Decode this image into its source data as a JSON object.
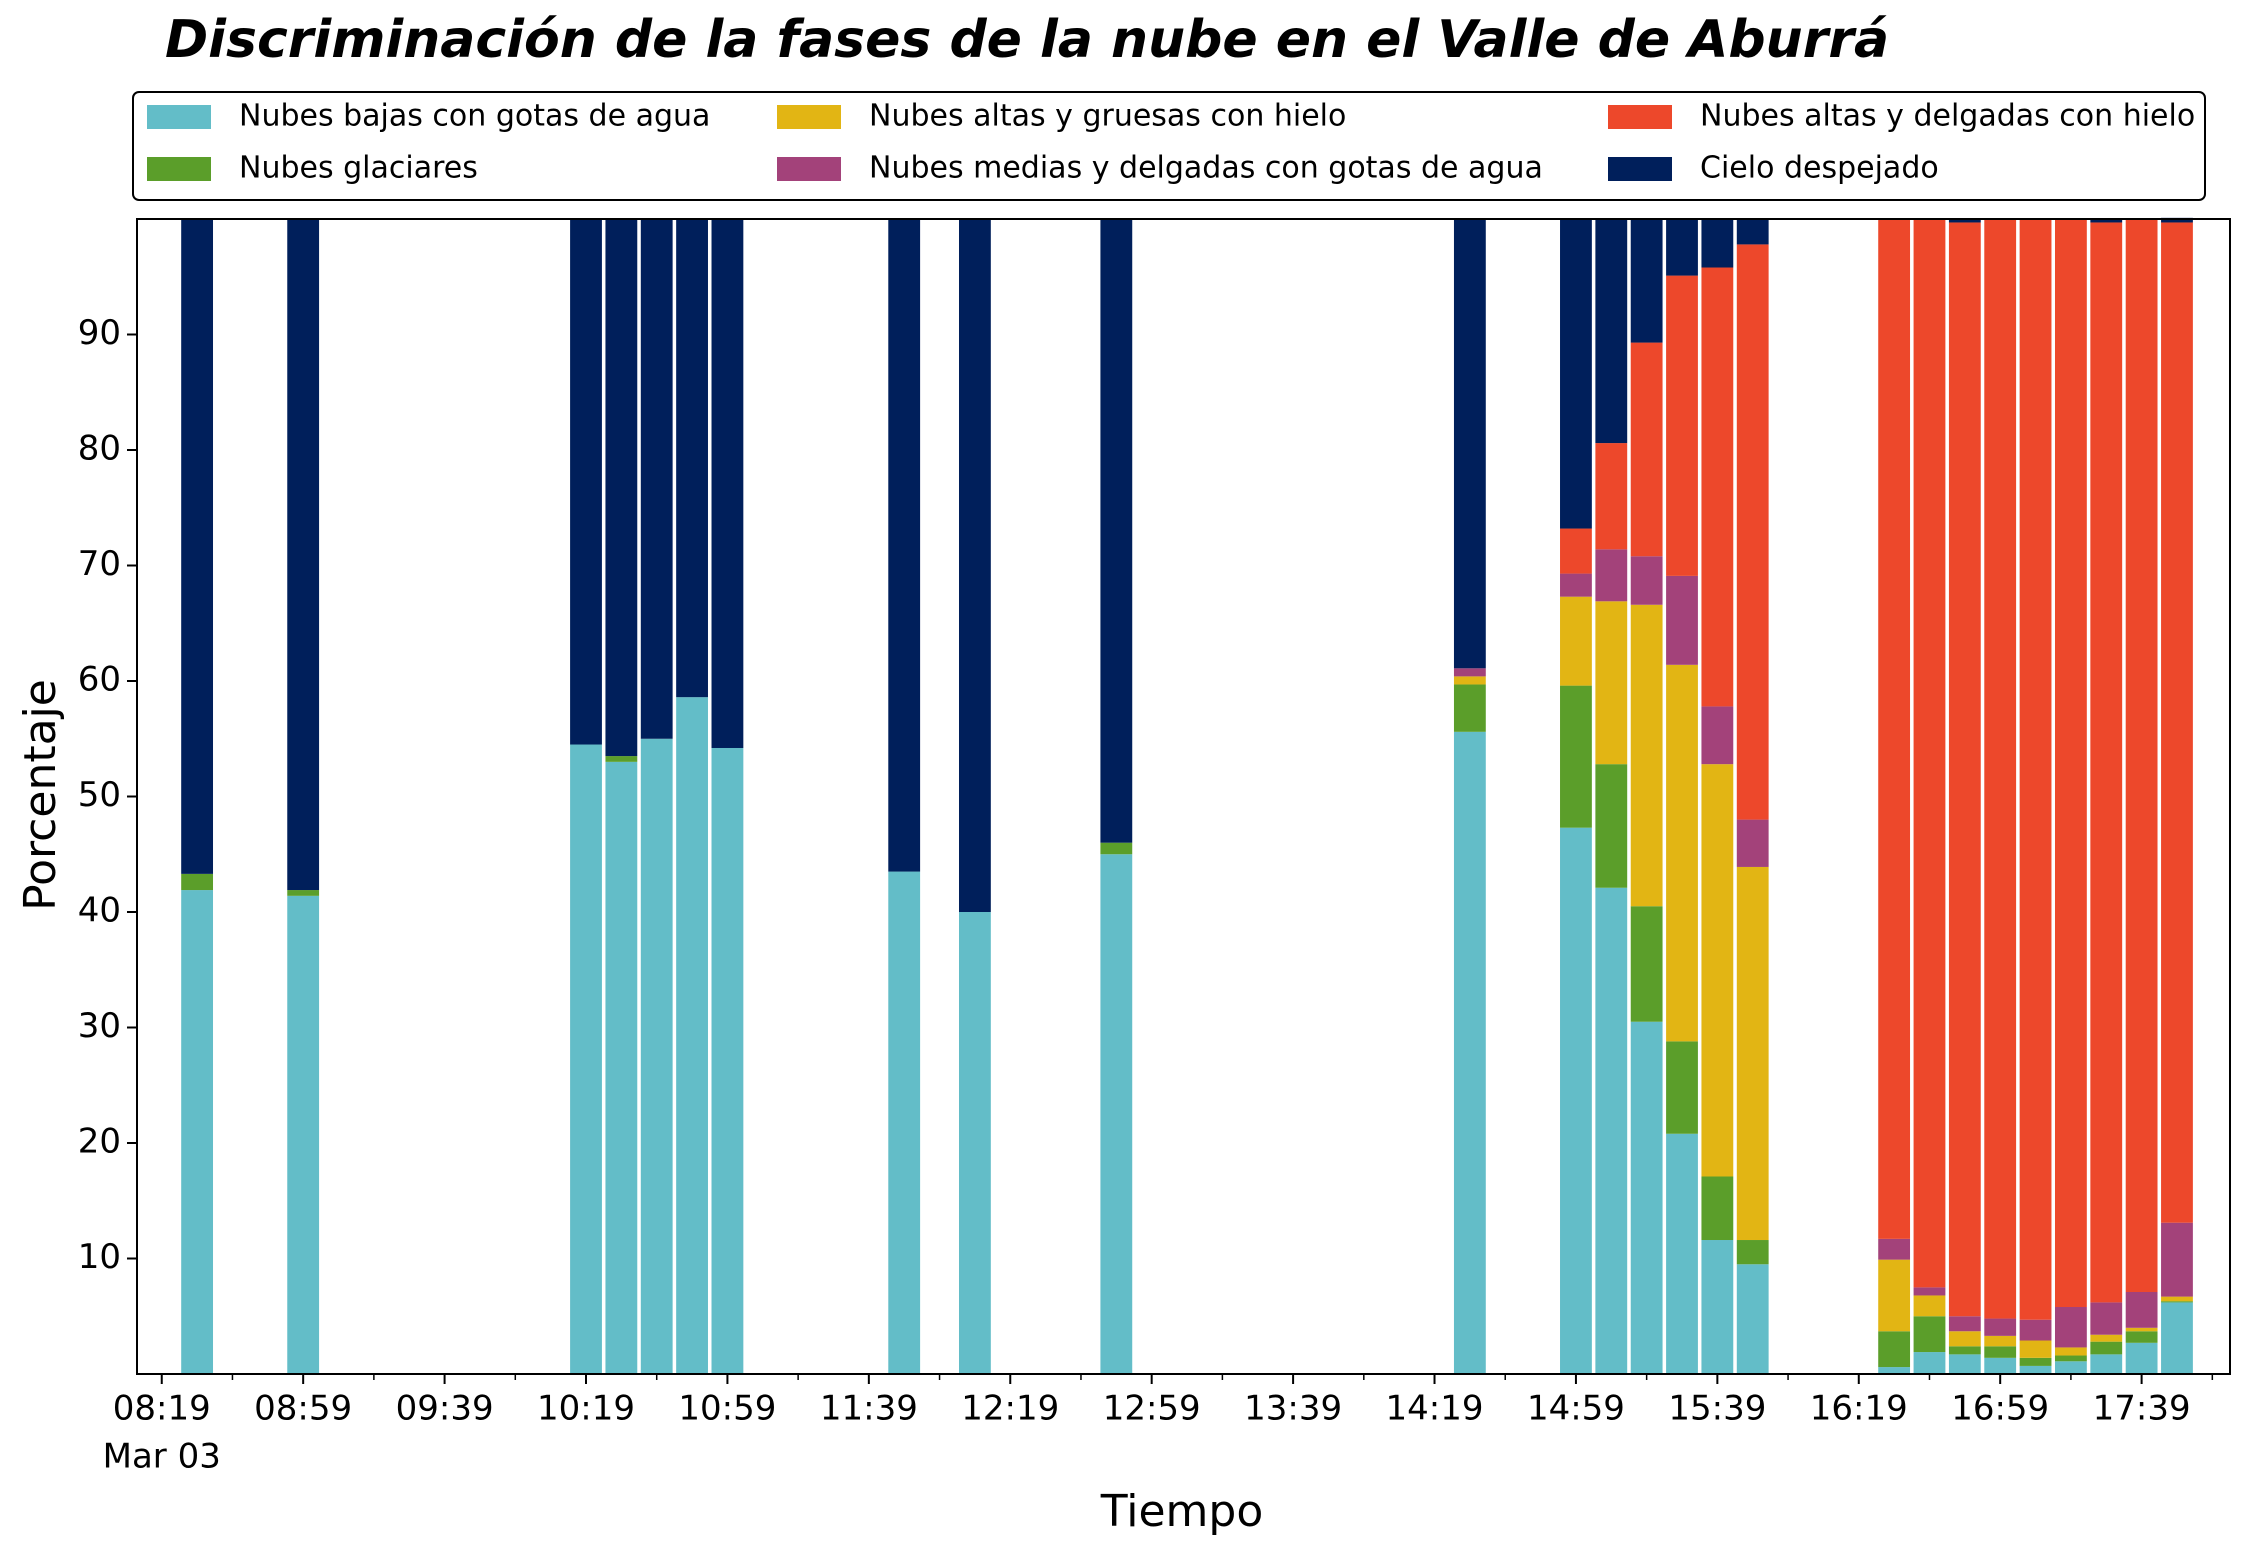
{
  "chart_data": {
    "type": "stacked_bar",
    "title": "Discriminación de la fases de la nube en el Valle de Aburrá",
    "xlabel": "Tiempo",
    "ylabel": "Porcentaje",
    "x_date_label": "Mar 03",
    "x": [
      "08:29",
      "08:59",
      "10:19",
      "10:29",
      "10:39",
      "10:49",
      "10:59",
      "11:49",
      "12:09",
      "12:49",
      "14:29",
      "14:59",
      "15:09",
      "15:19",
      "15:29",
      "15:39",
      "15:49",
      "16:29",
      "16:39",
      "16:49",
      "16:59",
      "17:09",
      "17:19",
      "17:29",
      "17:39",
      "17:49"
    ],
    "series": [
      {
        "name": "Nubes bajas con gotas de agua",
        "color": "#63bdc8",
        "values": [
          41.9,
          41.4,
          54.5,
          53.0,
          55.0,
          58.6,
          54.2,
          43.5,
          40.0,
          45.0,
          55.6,
          47.3,
          42.1,
          30.5,
          20.8,
          11.6,
          9.5,
          0.6,
          1.9,
          1.7,
          1.4,
          0.7,
          1.1,
          1.7,
          2.7,
          6.2
        ]
      },
      {
        "name": "Nubes glaciares",
        "color": "#5b9e2a",
        "values": [
          1.4,
          0.5,
          0,
          0.5,
          0,
          0,
          0,
          0,
          0,
          1.0,
          4.1,
          12.3,
          10.7,
          10.0,
          8.0,
          5.5,
          2.1,
          3.1,
          3.1,
          0.7,
          1.0,
          0.7,
          0.5,
          1.1,
          1.0,
          0.1
        ]
      },
      {
        "name": "Nubes altas y gruesas con hielo",
        "color": "#e2b514",
        "values": [
          0,
          0,
          0,
          0,
          0,
          0,
          0,
          0,
          0,
          0,
          0.7,
          7.7,
          14.1,
          26.1,
          32.6,
          35.7,
          32.3,
          6.2,
          1.8,
          1.3,
          0.9,
          1.5,
          0.7,
          0.6,
          0.3,
          0.4
        ]
      },
      {
        "name": "Nubes medias y delgadas con gotas de agua",
        "color": "#a3427a",
        "values": [
          0,
          0,
          0,
          0,
          0,
          0,
          0,
          0,
          0,
          0,
          0.7,
          2.0,
          4.5,
          4.2,
          7.7,
          5.0,
          4.1,
          1.8,
          0.7,
          1.3,
          1.5,
          1.8,
          3.5,
          2.8,
          3.1,
          6.4
        ]
      },
      {
        "name": "Nubes altas y delgadas con hielo",
        "color": "#ed482b",
        "values": [
          0,
          0,
          0,
          0,
          0,
          0,
          0,
          0,
          0,
          0,
          0,
          3.9,
          9.2,
          18.5,
          26.0,
          38.0,
          49.8,
          88.3,
          92.5,
          94.7,
          95.2,
          95.3,
          94.2,
          93.5,
          92.9,
          86.6
        ]
      },
      {
        "name": "Cielo despejado",
        "color": "#001f5b",
        "values": [
          56.7,
          58.1,
          45.5,
          46.5,
          45.0,
          41.4,
          45.8,
          56.5,
          60.0,
          54.0,
          38.9,
          26.8,
          19.4,
          10.7,
          4.9,
          4.2,
          2.2,
          0,
          0,
          0.3,
          0,
          0,
          0,
          0.3,
          0,
          0.4
        ]
      }
    ],
    "xlim": [
      "08:12",
      "18:04"
    ],
    "xticks": [
      "08:19",
      "08:59",
      "09:39",
      "10:19",
      "10:59",
      "11:39",
      "12:19",
      "12:59",
      "13:39",
      "14:19",
      "14:59",
      "15:39",
      "16:19",
      "16:59",
      "17:39"
    ],
    "ylim": [
      0,
      100
    ],
    "yticks": [
      10,
      20,
      30,
      40,
      50,
      60,
      70,
      80,
      90
    ],
    "legend": "top",
    "legend_columns": 3
  }
}
